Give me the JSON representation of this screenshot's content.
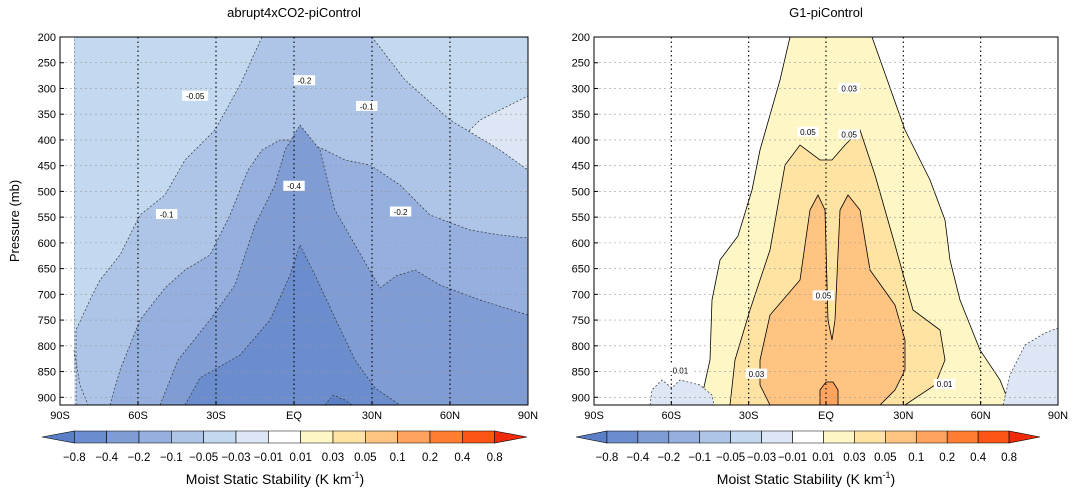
{
  "chart_data": [
    {
      "type": "contour",
      "title": "abrupt4xCO2-piControl",
      "ylabel": "Pressure (mb)",
      "x_ticks": [
        "90S",
        "60S",
        "30S",
        "EQ",
        "30N",
        "60N",
        "90N"
      ],
      "x_values": [
        -90,
        -60,
        -30,
        0,
        30,
        60,
        90
      ],
      "y_ticks": [
        "200",
        "250",
        "300",
        "350",
        "400",
        "450",
        "500",
        "550",
        "600",
        "650",
        "700",
        "750",
        "800",
        "850",
        "900"
      ],
      "y_values": [
        200,
        250,
        300,
        350,
        400,
        450,
        500,
        550,
        600,
        650,
        700,
        750,
        800,
        850,
        900
      ],
      "xlim": [
        -90,
        90
      ],
      "ylim": [
        915,
        200
      ],
      "contour_labels": [
        {
          "text": "-0.05",
          "lat": -38,
          "p": 315
        },
        {
          "text": "-0.2",
          "lat": 4,
          "p": 285
        },
        {
          "text": "-0.1",
          "lat": 28,
          "p": 335
        },
        {
          "text": "-0.4",
          "lat": 0,
          "p": 490
        },
        {
          "text": "-0.1",
          "lat": -49,
          "p": 545
        },
        {
          "text": "-0.2",
          "lat": 41,
          "p": 540
        }
      ],
      "vertical_reference_lines": [
        -60,
        -30,
        0,
        30,
        60
      ]
    },
    {
      "type": "contour",
      "title": "G1-piControl",
      "x_ticks": [
        "90S",
        "60S",
        "30S",
        "EQ",
        "30N",
        "60N",
        "90N"
      ],
      "x_values": [
        -90,
        -60,
        -30,
        0,
        30,
        60,
        90
      ],
      "y_ticks": [
        "200",
        "250",
        "300",
        "350",
        "400",
        "450",
        "500",
        "550",
        "600",
        "650",
        "700",
        "750",
        "800",
        "850",
        "900"
      ],
      "y_values": [
        200,
        250,
        300,
        350,
        400,
        450,
        500,
        550,
        600,
        650,
        700,
        750,
        800,
        850,
        900
      ],
      "xlim": [
        -90,
        90
      ],
      "ylim": [
        915,
        200
      ],
      "contour_labels": [
        {
          "text": "0.03",
          "lat": 9,
          "p": 300
        },
        {
          "text": "0.05",
          "lat": -7,
          "p": 385
        },
        {
          "text": "0.05",
          "lat": 9,
          "p": 390
        },
        {
          "text": "0.05",
          "lat": -1,
          "p": 703
        },
        {
          "text": "-0.01",
          "lat": -57,
          "p": 848
        },
        {
          "text": "0.03",
          "lat": -27,
          "p": 855
        },
        {
          "text": "0.01",
          "lat": 46,
          "p": 875
        }
      ],
      "vertical_reference_lines": [
        -60,
        -30,
        0,
        30,
        60
      ]
    }
  ],
  "colorbar": {
    "label": "Moist Static Stability (K km",
    "label_sup": "-1",
    "label_close": ")",
    "tick_labels": [
      "−0.8",
      "−0.4",
      "−0.2",
      "−0.1",
      "−0.05",
      "−0.03",
      "−0.01",
      "0.01",
      "0.03",
      "0.05",
      "0.1",
      "0.2",
      "0.4",
      "0.8"
    ],
    "colors": [
      "#5a7fc6",
      "#6b8dcd",
      "#7f9dd4",
      "#95b0de",
      "#aec5e7",
      "#c3d9f0",
      "#dde6f5",
      "#ffffff",
      "#fff6c5",
      "#ffe3a3",
      "#ffc382",
      "#ffa45e",
      "#ff7e33",
      "#ff5514",
      "#f02a0a"
    ]
  }
}
